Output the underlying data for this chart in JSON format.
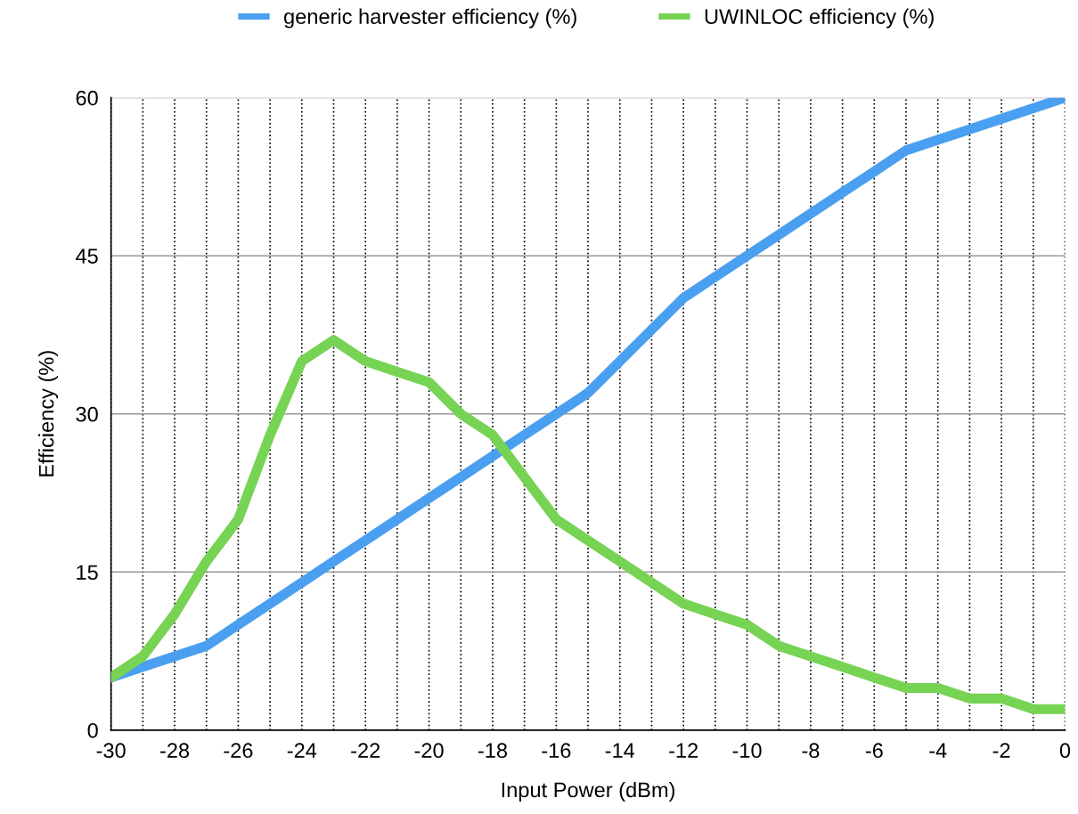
{
  "chart_data": {
    "type": "line",
    "xlabel": "Input Power (dBm)",
    "ylabel": "Efficiency (%)",
    "x": [
      -30,
      -29,
      -28,
      -27,
      -26,
      -25,
      -24,
      -23,
      -22,
      -21,
      -20,
      -19,
      -18,
      -17,
      -16,
      -15,
      -14,
      -13,
      -12,
      -11,
      -10,
      -9,
      -8,
      -7,
      -6,
      -5,
      -4,
      -3,
      -2,
      -1,
      0
    ],
    "series": [
      {
        "name": "generic harvester efficiency (%)",
        "color": "#4a9ff0",
        "values": [
          5,
          6,
          7,
          8,
          10,
          12,
          14,
          16,
          18,
          20,
          22,
          24,
          26,
          28,
          30,
          32,
          35,
          38,
          41,
          43,
          45,
          47,
          49,
          51,
          53,
          55,
          56,
          57,
          58,
          59,
          60
        ]
      },
      {
        "name": "UWINLOC efficiency (%)",
        "color": "#77d354",
        "values": [
          5,
          7,
          11,
          16,
          20,
          28,
          35,
          37,
          35,
          34,
          33,
          30,
          28,
          24,
          20,
          18,
          16,
          14,
          12,
          11,
          10,
          8,
          7,
          6,
          5,
          4,
          4,
          3,
          3,
          2,
          2
        ]
      }
    ],
    "xlim": [
      -30,
      0
    ],
    "xticks": [
      -30,
      {
        "value": -29,
        "label": null
      },
      -28,
      {
        "value": -27,
        "label": null
      },
      -26,
      {
        "value": -25,
        "label": null
      },
      -24,
      {
        "value": -23,
        "label": null
      },
      -22,
      {
        "value": -21,
        "label": null
      },
      -20,
      {
        "value": -19,
        "label": null
      },
      -18,
      {
        "value": -17,
        "label": null
      },
      -16,
      {
        "value": -15,
        "label": null
      },
      -14,
      {
        "value": -13,
        "label": null
      },
      -12,
      {
        "value": -11,
        "label": null
      },
      -10,
      {
        "value": -9,
        "label": null
      },
      -8,
      {
        "value": -7,
        "label": null
      },
      -6,
      {
        "value": -5,
        "label": null
      },
      -4,
      {
        "value": -3,
        "label": null
      },
      -2,
      {
        "value": -1,
        "label": null
      },
      0
    ],
    "ylim": [
      0,
      60
    ],
    "yticks": [
      0,
      15,
      30,
      45,
      60
    ],
    "grid": true,
    "legend": "top",
    "line_style": "solid",
    "marker": "none"
  }
}
